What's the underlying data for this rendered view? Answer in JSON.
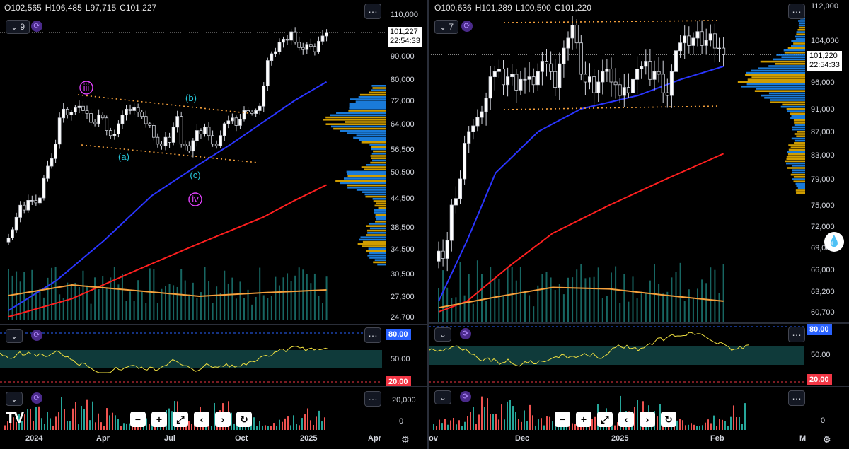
{
  "left": {
    "ohlc": {
      "o": "O102,565",
      "h": "H106,485",
      "l": "L97,715",
      "c": "C101,227"
    },
    "interval_badge": "9",
    "price_axis": [
      "110,000",
      "90,000",
      "80,000",
      "72,000",
      "64,000",
      "56,500",
      "50,500",
      "44,500",
      "38,500",
      "34,500",
      "30,500",
      "27,300",
      "24,700"
    ],
    "last_price": "101,227",
    "countdown": "22:54:33",
    "date_axis": [
      "2024",
      "Apr",
      "Jul",
      "Oct",
      "2025",
      "Apr"
    ],
    "wave_labels": [
      "iii",
      "(a)",
      "(b)",
      "(c)",
      "iv"
    ],
    "rsi_levels": [
      "80.00",
      "50.00",
      "20.00"
    ],
    "vol_axis": [
      "20,000",
      "0"
    ]
  },
  "right": {
    "ohlc": {
      "o": "O100,636",
      "h": "H101,289",
      "l": "L100,500",
      "c": "C101,220"
    },
    "interval_badge": "7",
    "price_axis": [
      "112,000",
      "104,000",
      "96,000",
      "91,000",
      "87,000",
      "83,000",
      "79,000",
      "75,000",
      "72,000",
      "69,000",
      "66,000",
      "63,200",
      "60,700"
    ],
    "last_price": "101,220",
    "countdown": "22:54:33",
    "date_axis": [
      "ov",
      "Dec",
      "2025",
      "Feb",
      "M"
    ],
    "rsi_levels": [
      "80.00",
      "50.00",
      "20.00"
    ],
    "vol_axis": [
      "0"
    ]
  },
  "toolbar_icons": [
    "zoom-out-icon",
    "zoom-in-icon",
    "fullscreen-icon",
    "scroll-left-icon",
    "scroll-right-icon",
    "reset-icon"
  ],
  "colors": {
    "up": "#ffffff",
    "down": "#000000",
    "ma_fast": "#2a35ff",
    "ma_slow": "#ff1f1f",
    "ma_vol": "#f5a03c",
    "profile_blue": "#1e90ff",
    "profile_gold": "#f5b800",
    "rsi_line": "#f0e040",
    "rsi_band": "#0f3a3a",
    "rsi80_tag": "#2962ff",
    "rsi20_tag": "#f23645"
  },
  "chart_data": [
    {
      "type": "candlestick",
      "pane": "left",
      "price_ticks": [
        110000,
        90000,
        80000,
        72000,
        64000,
        56500,
        50500,
        44500,
        38500,
        34500,
        30500,
        27300,
        24700
      ],
      "last": 101227,
      "series": [
        {
          "name": "",
          "close": [
            36500,
            38000,
            40500,
            43000,
            42000,
            44000,
            44000,
            43500,
            44500,
            49000,
            52000,
            54000,
            58000,
            66000,
            69000,
            67000,
            68000,
            69500,
            70000,
            68500,
            67500,
            64500,
            64000,
            67000,
            66000,
            62000,
            60500,
            61000,
            64000,
            67000,
            69000,
            68500,
            69500,
            68000,
            66500,
            64000,
            63500,
            60000,
            58000,
            57500,
            60000,
            58500,
            63000,
            66500,
            58000,
            57500,
            56000,
            59000,
            62000,
            61000,
            63000,
            60500,
            58000,
            57500,
            60500,
            64000,
            65000,
            66000,
            63500,
            65500,
            68500,
            68000,
            67500,
            68500,
            70000,
            77500,
            88000,
            91000,
            92000,
            96500,
            98000,
            97500,
            101500,
            96500,
            94000,
            93000,
            95500,
            94500,
            92000,
            97000,
            99500,
            101227
          ]
        }
      ]
    },
    {
      "type": "candlestick",
      "pane": "right",
      "price_ticks": [
        112000,
        104000,
        96000,
        91000,
        87000,
        83000,
        79000,
        75000,
        72000,
        69000,
        66000,
        63200,
        60700
      ],
      "last": 101220,
      "series": [
        {
          "name": "",
          "close": [
            68500,
            67500,
            70000,
            75000,
            76000,
            79000,
            85000,
            87000,
            88000,
            89500,
            90500,
            93000,
            97000,
            98000,
            98500,
            95500,
            97000,
            97500,
            94500,
            96500,
            96500,
            97000,
            95500,
            98000,
            100000,
            99500,
            98000,
            95000,
            99500,
            102500,
            104500,
            107500,
            103500,
            97500,
            96000,
            97000,
            94000,
            96000,
            98000,
            98500,
            96000,
            95500,
            93500,
            95000,
            94000,
            96500,
            98500,
            99000,
            100000,
            96500,
            98000,
            97500,
            94000,
            93500,
            98000,
            102000,
            103500,
            105000,
            103000,
            104500,
            106000,
            103000,
            104000,
            105500,
            102500,
            102500,
            101220
          ]
        }
      ]
    }
  ]
}
